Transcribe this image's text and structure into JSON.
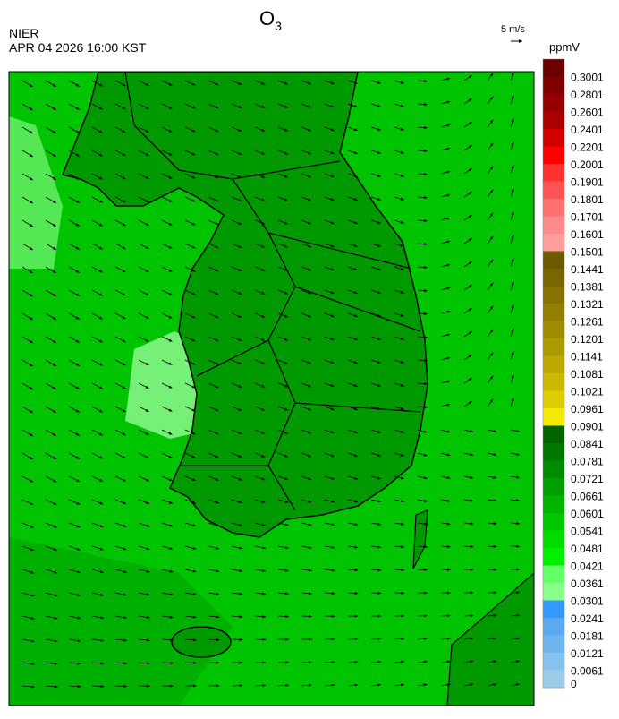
{
  "header": {
    "title": {
      "base": "O",
      "subscript": "3"
    },
    "source": "NIER",
    "timestamp": "APR 04 2026 16:00 KST",
    "vector_scale": "5 m/s"
  },
  "colorbar": {
    "unit": "ppmV",
    "labels": [
      0.3001,
      0.2801,
      0.2601,
      0.2401,
      0.2201,
      0.2001,
      0.1901,
      0.1801,
      0.1701,
      0.1601,
      0.1501,
      0.1441,
      0.1381,
      0.1321,
      0.1261,
      0.1201,
      0.1141,
      0.1081,
      0.1021,
      0.0961,
      0.0901,
      0.0841,
      0.0781,
      0.0721,
      0.0661,
      0.0601,
      0.0541,
      0.0481,
      0.0421,
      0.0361,
      0.0301,
      0.0241,
      0.0181,
      0.0121,
      0.0061,
      0
    ],
    "colors": [
      "#6b0000",
      "#800000",
      "#960000",
      "#ab0000",
      "#d40000",
      "#ff0000",
      "#ff3030",
      "#ff5252",
      "#ff7070",
      "#ff8a8a",
      "#ff9c9c",
      "#6b5a00",
      "#786600",
      "#857200",
      "#927e00",
      "#a08c00",
      "#ad9a00",
      "#bfa800",
      "#ccb800",
      "#dccc00",
      "#f2ea00",
      "#006400",
      "#007800",
      "#008c00",
      "#00a000",
      "#00b400",
      "#00c800",
      "#00dc00",
      "#00f000",
      "#66ff66",
      "#88ff88",
      "#3399ff",
      "#5aaaf2",
      "#70b6ee",
      "#86c2ee",
      "#9cccea"
    ]
  }
}
